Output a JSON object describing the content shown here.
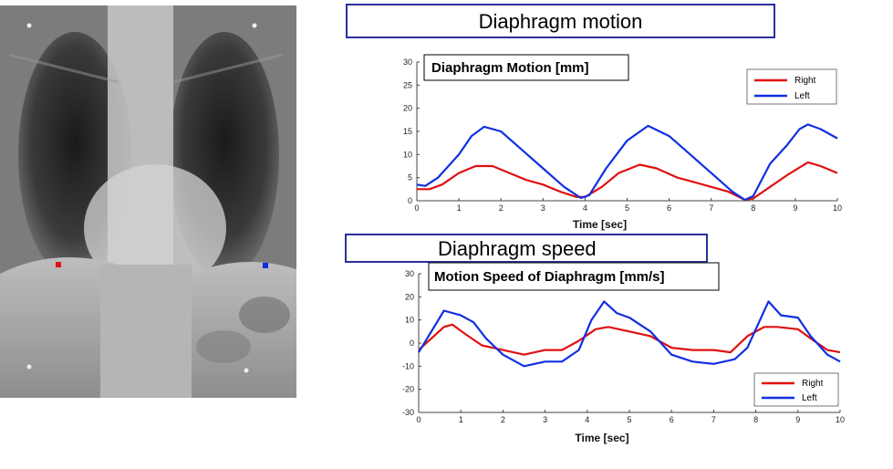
{
  "panel_titles": {
    "motion": "Diaphragm motion",
    "speed": "Diaphragm speed"
  },
  "xray": {
    "markers": [
      {
        "name": "right-diaphragm-marker",
        "color": "#e01010"
      },
      {
        "name": "left-diaphragm-marker",
        "color": "#1030e0"
      }
    ]
  },
  "chart_data": [
    {
      "type": "line",
      "title": "Diaphragm Motion [mm]",
      "xlabel": "Time [sec]",
      "ylabel": "",
      "xlim": [
        0,
        10
      ],
      "ylim": [
        0,
        30
      ],
      "xticks": [
        "0",
        "1",
        "2",
        "3",
        "4",
        "5",
        "6",
        "7",
        "8",
        "9",
        "10"
      ],
      "yticks": [
        "0",
        "5",
        "10",
        "15",
        "20",
        "25",
        "30"
      ],
      "legend_position": "top-right",
      "grid": false,
      "series": [
        {
          "name": "Right",
          "color": "#e01010",
          "points": [
            [
              0,
              2.5
            ],
            [
              0.3,
              2.5
            ],
            [
              0.6,
              3.5
            ],
            [
              1,
              6
            ],
            [
              1.4,
              7.5
            ],
            [
              1.8,
              7.5
            ],
            [
              2.2,
              6
            ],
            [
              2.6,
              4.5
            ],
            [
              3,
              3.5
            ],
            [
              3.4,
              2
            ],
            [
              3.8,
              0.8
            ],
            [
              4,
              0.8
            ],
            [
              4.4,
              3
            ],
            [
              4.8,
              6
            ],
            [
              5.3,
              7.8
            ],
            [
              5.7,
              7
            ],
            [
              6.2,
              5
            ],
            [
              6.6,
              4
            ],
            [
              7,
              3
            ],
            [
              7.4,
              2
            ],
            [
              7.8,
              0.2
            ],
            [
              8,
              0.5
            ],
            [
              8.4,
              3
            ],
            [
              8.8,
              5.5
            ],
            [
              9.3,
              8.3
            ],
            [
              9.6,
              7.5
            ],
            [
              10,
              6
            ]
          ]
        },
        {
          "name": "Left",
          "color": "#1030e0",
          "points": [
            [
              0,
              3.5
            ],
            [
              0.2,
              3.2
            ],
            [
              0.5,
              5
            ],
            [
              1,
              10
            ],
            [
              1.3,
              14
            ],
            [
              1.6,
              16
            ],
            [
              2,
              15
            ],
            [
              2.5,
              11
            ],
            [
              3,
              7
            ],
            [
              3.5,
              3
            ],
            [
              3.9,
              0.6
            ],
            [
              4.1,
              1.2
            ],
            [
              4.5,
              7
            ],
            [
              5,
              13
            ],
            [
              5.5,
              16.2
            ],
            [
              6,
              14
            ],
            [
              6.5,
              10
            ],
            [
              7,
              6
            ],
            [
              7.5,
              2
            ],
            [
              7.8,
              0.2
            ],
            [
              8,
              1
            ],
            [
              8.4,
              8
            ],
            [
              8.8,
              12
            ],
            [
              9.1,
              15.5
            ],
            [
              9.3,
              16.5
            ],
            [
              9.6,
              15.5
            ],
            [
              10,
              13.5
            ]
          ]
        }
      ]
    },
    {
      "type": "line",
      "title": "Motion Speed of Diaphragm [mm/s]",
      "xlabel": "Time [sec]",
      "ylabel": "",
      "xlim": [
        0,
        10
      ],
      "ylim": [
        -30,
        30
      ],
      "xticks": [
        "0",
        "1",
        "2",
        "3",
        "4",
        "5",
        "6",
        "7",
        "8",
        "9",
        "10"
      ],
      "yticks": [
        "-30",
        "-20",
        "-10",
        "0",
        "10",
        "20",
        "30"
      ],
      "legend_position": "bottom-right",
      "grid": false,
      "series": [
        {
          "name": "Right",
          "color": "#e01010",
          "points": [
            [
              0,
              -3
            ],
            [
              0.3,
              2
            ],
            [
              0.6,
              7
            ],
            [
              0.8,
              8
            ],
            [
              1.1,
              4
            ],
            [
              1.5,
              -1
            ],
            [
              2,
              -3
            ],
            [
              2.5,
              -5
            ],
            [
              3,
              -3
            ],
            [
              3.4,
              -3
            ],
            [
              3.8,
              1
            ],
            [
              4.2,
              6
            ],
            [
              4.5,
              7
            ],
            [
              5,
              5
            ],
            [
              5.5,
              3
            ],
            [
              6,
              -2
            ],
            [
              6.5,
              -3
            ],
            [
              7,
              -3
            ],
            [
              7.4,
              -4
            ],
            [
              7.8,
              3
            ],
            [
              8.2,
              7
            ],
            [
              8.5,
              7
            ],
            [
              9,
              6
            ],
            [
              9.3,
              2
            ],
            [
              9.7,
              -3
            ],
            [
              10,
              -4
            ]
          ]
        },
        {
          "name": "Left",
          "color": "#1030e0",
          "points": [
            [
              0,
              -4
            ],
            [
              0.3,
              5
            ],
            [
              0.6,
              14
            ],
            [
              1,
              12
            ],
            [
              1.3,
              9
            ],
            [
              1.6,
              2
            ],
            [
              2,
              -5
            ],
            [
              2.5,
              -10
            ],
            [
              3,
              -8
            ],
            [
              3.4,
              -8
            ],
            [
              3.8,
              -3
            ],
            [
              4.1,
              10
            ],
            [
              4.4,
              18
            ],
            [
              4.7,
              13
            ],
            [
              5,
              11
            ],
            [
              5.5,
              5
            ],
            [
              6,
              -5
            ],
            [
              6.5,
              -8
            ],
            [
              7,
              -9
            ],
            [
              7.5,
              -7
            ],
            [
              7.8,
              -2
            ],
            [
              8.1,
              10
            ],
            [
              8.3,
              18
            ],
            [
              8.6,
              12
            ],
            [
              9,
              11
            ],
            [
              9.3,
              3
            ],
            [
              9.7,
              -5
            ],
            [
              10,
              -8
            ]
          ]
        }
      ]
    }
  ]
}
